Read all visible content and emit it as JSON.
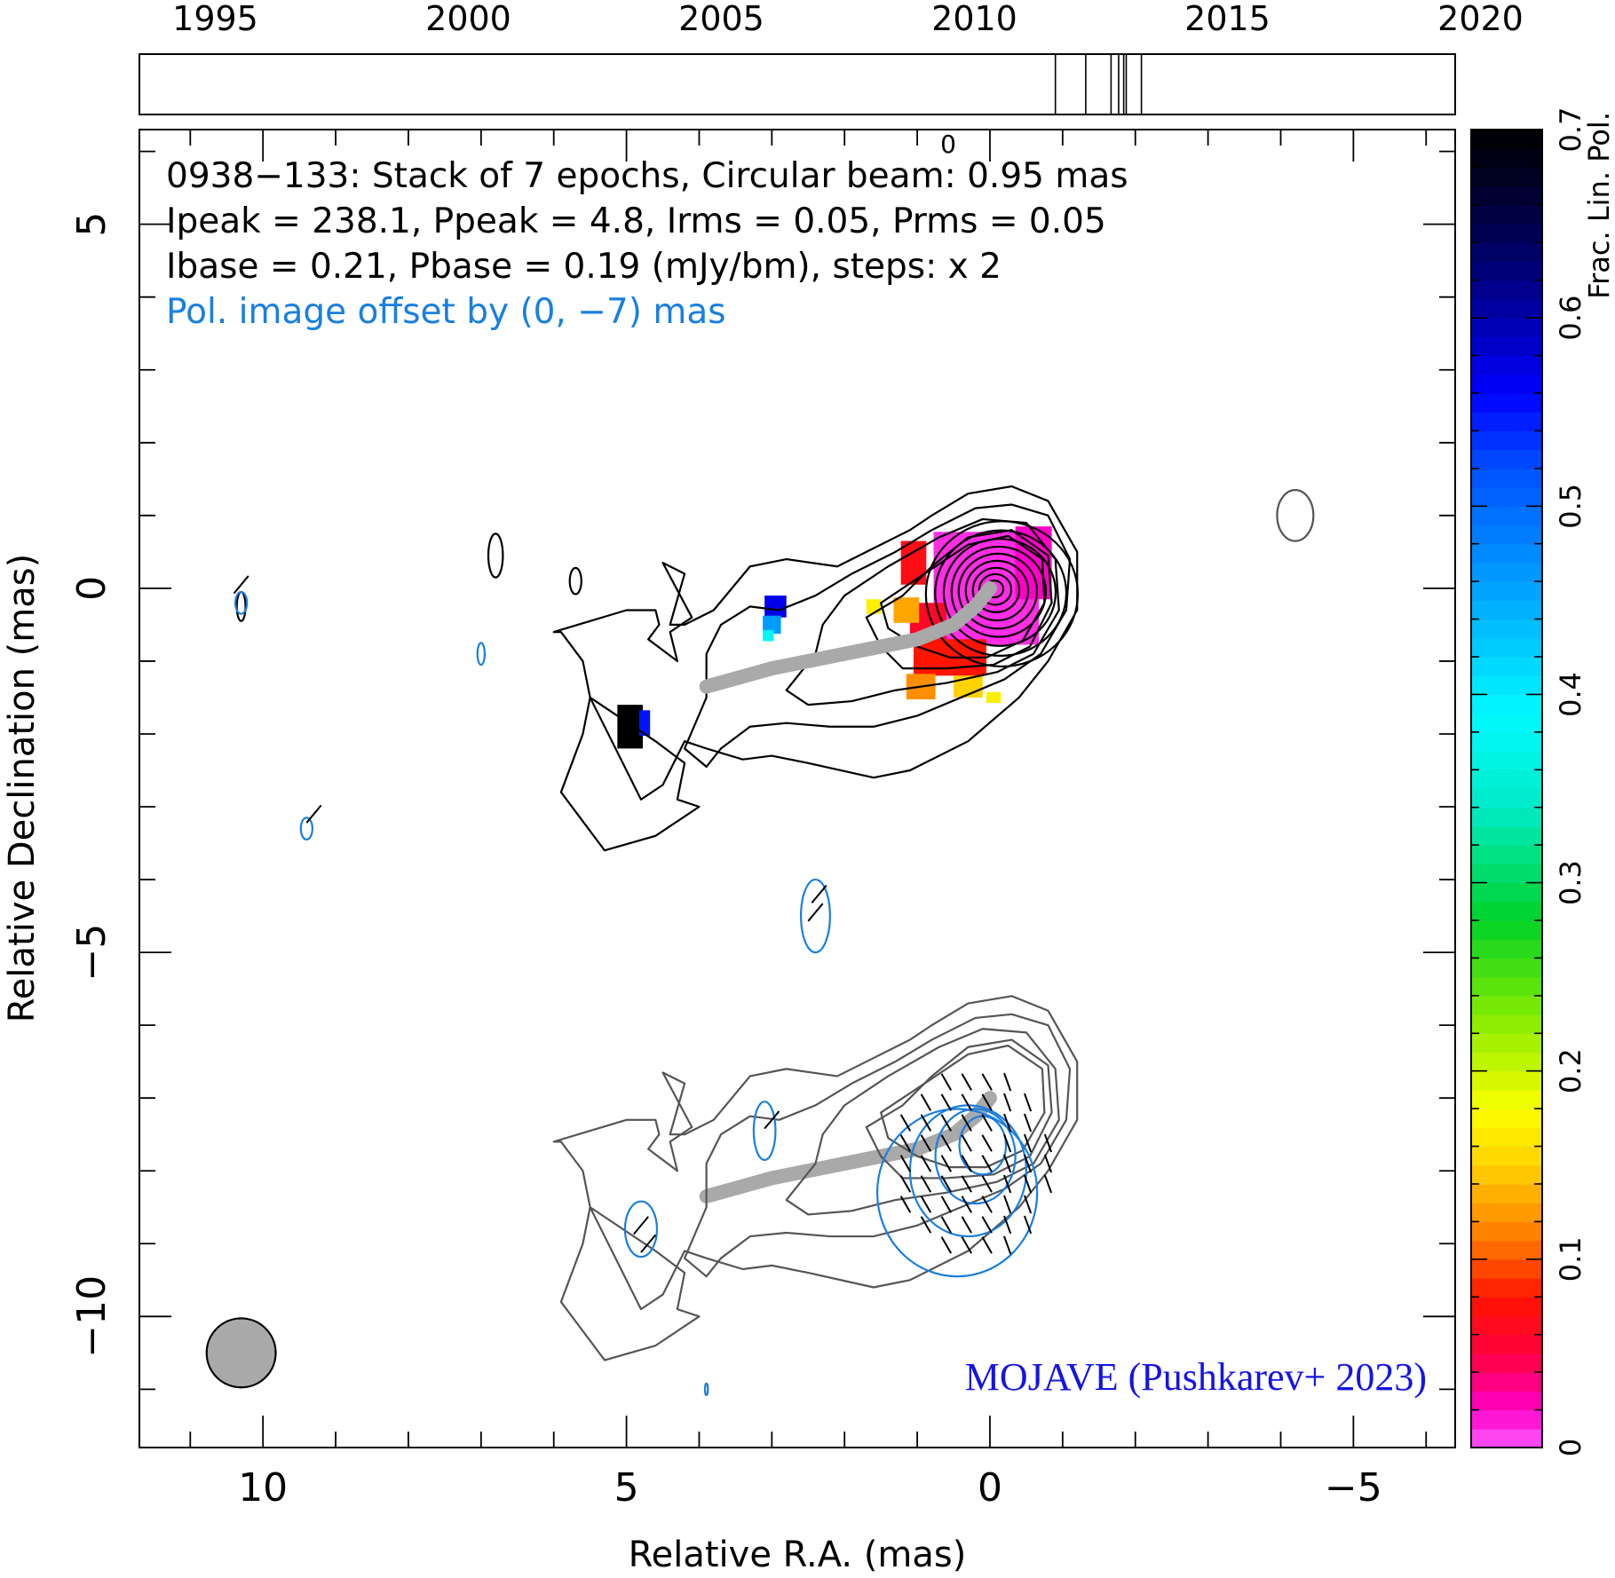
{
  "chart_data": {
    "type": "heatmap",
    "timeline": {
      "tick_labels": [
        "1995",
        "2000",
        "2005",
        "2010",
        "2015",
        "2020"
      ],
      "tick_years": [
        1995,
        2000,
        2005,
        2010,
        2015,
        2020
      ],
      "range": [
        1993.5,
        2019.5
      ],
      "epochs": [
        2011.6,
        2012.2,
        2012.7,
        2012.85,
        2012.95,
        2013.0,
        2013.3
      ]
    },
    "x_axis": {
      "label": "Relative R.A. (mas)",
      "range": [
        11.7,
        -6.4
      ],
      "tick_labels": [
        "10",
        "5",
        "0",
        "−5"
      ],
      "tick_values": [
        10,
        5,
        0,
        -5
      ],
      "minor_step": 1
    },
    "y_axis": {
      "label": "Relative Declination (mas)",
      "range": [
        -11.8,
        6.3
      ],
      "tick_labels": [
        "5",
        "0",
        "−5",
        "−10"
      ],
      "tick_values": [
        5,
        0,
        -5,
        -10
      ],
      "minor_step": 1,
      "top_extra_label": "0"
    },
    "info_lines": [
      "0938−133: Stack of 7 epochs, Circular beam: 0.95 mas",
      "Ipeak = 238.1, Ppeak = 4.8, Irms = 0.05, Prms = 0.05",
      "Ibase = 0.21, Pbase = 0.19 (mJy/bm), steps: x 2"
    ],
    "offset_note": "Pol. image offset by (0, −7) mas",
    "credit": "MOJAVE (Pushkarev+ 2023)",
    "colorbar": {
      "label": "Frac. Lin. Pol.",
      "range": [
        0,
        0.7
      ],
      "tick_labels": [
        "0",
        "0.1",
        "0.2",
        "0.3",
        "0.4",
        "0.5",
        "0.6",
        "0.7"
      ],
      "tick_values": [
        0,
        0.1,
        0.2,
        0.3,
        0.4,
        0.5,
        0.6,
        0.7
      ]
    },
    "beam": {
      "x": 10.3,
      "y": -10.5,
      "diameter": 0.95
    },
    "ridgeline": [
      [
        3.9,
        -1.35
      ],
      [
        3.0,
        -1.1
      ],
      [
        2.0,
        -0.9
      ],
      [
        1.0,
        -0.7
      ],
      [
        0.5,
        -0.5
      ],
      [
        0.2,
        -0.25
      ],
      [
        0.0,
        0.0
      ]
    ],
    "pol_offset_dec": -7,
    "stokes_I_contours": [
      {
        "level": 1,
        "points": [
          [
            5.5,
            -1.5
          ],
          [
            4.6,
            -2.1
          ],
          [
            4.2,
            -2.4
          ],
          [
            4.3,
            -2.9
          ],
          [
            4.0,
            -3.0
          ],
          [
            4.6,
            -3.4
          ],
          [
            5.3,
            -3.6
          ],
          [
            5.9,
            -2.8
          ],
          [
            5.6,
            -2.0
          ],
          [
            5.5,
            -1.5
          ],
          [
            5.6,
            -1.0
          ],
          [
            5.9,
            -0.6
          ],
          [
            6.0,
            -0.6
          ],
          [
            5.0,
            -0.3
          ],
          [
            4.6,
            -0.3
          ],
          [
            4.55,
            -0.5
          ],
          [
            4.7,
            -0.7
          ],
          [
            4.3,
            -1.0
          ],
          [
            4.4,
            -0.6
          ],
          [
            4.1,
            -0.4
          ],
          [
            4.5,
            0.35
          ],
          [
            4.2,
            0.2
          ],
          [
            4.4,
            -0.5
          ],
          [
            4.2,
            -0.5
          ],
          [
            3.8,
            -0.3
          ],
          [
            3.3,
            0.3
          ],
          [
            2.8,
            0.4
          ],
          [
            2.1,
            0.3
          ],
          [
            1.6,
            0.55
          ],
          [
            1.1,
            0.8
          ],
          [
            0.8,
            1.0
          ],
          [
            0.3,
            1.3
          ],
          [
            -0.3,
            1.4
          ],
          [
            -0.8,
            1.2
          ],
          [
            -1.2,
            0.5
          ],
          [
            -1.2,
            -0.3
          ],
          [
            -0.8,
            -1.0
          ],
          [
            -0.4,
            -1.5
          ],
          [
            0.3,
            -2.1
          ],
          [
            1.1,
            -2.5
          ],
          [
            1.6,
            -2.6
          ],
          [
            2.5,
            -2.4
          ],
          [
            3.0,
            -2.3
          ],
          [
            3.4,
            -2.35
          ],
          [
            3.9,
            -2.2
          ],
          [
            4.2,
            -2.1
          ],
          [
            4.5,
            -2.7
          ],
          [
            4.8,
            -2.9
          ],
          [
            5.5,
            -1.5
          ]
        ],
        "tone": "#000"
      },
      {
        "level": 2,
        "points": [
          [
            3.9,
            -0.9
          ],
          [
            3.7,
            -0.5
          ],
          [
            3.3,
            -0.25
          ],
          [
            2.9,
            -0.3
          ],
          [
            2.4,
            -0.1
          ],
          [
            1.9,
            0.2
          ],
          [
            1.3,
            0.5
          ],
          [
            0.8,
            0.8
          ],
          [
            0.2,
            1.1
          ],
          [
            -0.3,
            1.15
          ],
          [
            -0.8,
            1.0
          ],
          [
            -1.1,
            0.4
          ],
          [
            -1.05,
            -0.3
          ],
          [
            -0.7,
            -0.9
          ],
          [
            -0.2,
            -1.25
          ],
          [
            0.4,
            -1.5
          ],
          [
            1.0,
            -1.75
          ],
          [
            1.6,
            -1.9
          ],
          [
            2.2,
            -1.9
          ],
          [
            2.8,
            -1.85
          ],
          [
            3.3,
            -1.9
          ],
          [
            3.7,
            -2.2
          ],
          [
            3.9,
            -2.45
          ],
          [
            4.2,
            -2.2
          ],
          [
            3.9,
            -1.5
          ],
          [
            3.9,
            -0.9
          ]
        ],
        "tone": "#000"
      },
      {
        "level": 3,
        "points": [
          [
            2.8,
            -1.4
          ],
          [
            2.4,
            -0.9
          ],
          [
            2.3,
            -0.5
          ],
          [
            2.0,
            -0.1
          ],
          [
            1.4,
            0.3
          ],
          [
            0.7,
            0.7
          ],
          [
            0.1,
            0.95
          ],
          [
            -0.5,
            0.9
          ],
          [
            -0.9,
            0.4
          ],
          [
            -0.95,
            -0.3
          ],
          [
            -0.6,
            -0.9
          ],
          [
            -0.1,
            -1.15
          ],
          [
            0.6,
            -1.3
          ],
          [
            1.3,
            -1.4
          ],
          [
            1.9,
            -1.55
          ],
          [
            2.5,
            -1.6
          ],
          [
            2.8,
            -1.4
          ]
        ],
        "tone": "#000"
      },
      {
        "level": 4,
        "points": [
          [
            1.7,
            -0.4
          ],
          [
            1.2,
            -0.1
          ],
          [
            0.8,
            0.3
          ],
          [
            0.3,
            0.7
          ],
          [
            -0.3,
            0.8
          ],
          [
            -0.8,
            0.45
          ],
          [
            -0.85,
            -0.2
          ],
          [
            -0.55,
            -0.8
          ],
          [
            -0.05,
            -1.05
          ],
          [
            0.6,
            -1.1
          ],
          [
            1.2,
            -1.1
          ],
          [
            1.5,
            -0.8
          ],
          [
            1.7,
            -0.4
          ]
        ],
        "tone": "#000"
      },
      {
        "level": 5,
        "points": [
          [
            1.5,
            -0.2
          ],
          [
            0.9,
            0.2
          ],
          [
            0.3,
            0.6
          ],
          [
            -0.25,
            0.72
          ],
          [
            -0.72,
            0.4
          ],
          [
            -0.75,
            -0.2
          ],
          [
            -0.45,
            -0.72
          ],
          [
            0.05,
            -0.95
          ],
          [
            0.55,
            -0.95
          ],
          [
            1.0,
            -0.8
          ],
          [
            1.4,
            -0.55
          ],
          [
            1.5,
            -0.2
          ]
        ],
        "tone": "#000"
      }
    ],
    "stokes_I_rings": [
      0.95,
      0.82,
      0.7,
      0.59,
      0.49,
      0.39,
      0.29,
      0.2,
      0.11
    ],
    "fracpol_pixels": [
      {
        "x": 0.05,
        "y": 0.0,
        "w": 1.45,
        "h": 1.55,
        "value": 0.01
      },
      {
        "x": -0.6,
        "y": 0.35,
        "w": 0.5,
        "h": 1.0,
        "value": 0.02
      },
      {
        "x": 0.85,
        "y": -0.45,
        "w": 0.5,
        "h": 0.5,
        "value": 0.06
      },
      {
        "x": 0.55,
        "y": -0.95,
        "w": 1.0,
        "h": 0.5,
        "value": 0.08
      },
      {
        "x": 1.05,
        "y": 0.35,
        "w": 0.35,
        "h": 0.6,
        "value": 0.07
      },
      {
        "x": 1.15,
        "y": -0.3,
        "w": 0.35,
        "h": 0.35,
        "value": 0.13
      },
      {
        "x": 1.6,
        "y": -0.25,
        "w": 0.2,
        "h": 0.2,
        "value": 0.17
      },
      {
        "x": 0.95,
        "y": -1.35,
        "w": 0.4,
        "h": 0.35,
        "value": 0.12
      },
      {
        "x": 0.3,
        "y": -1.35,
        "w": 0.4,
        "h": 0.3,
        "value": 0.15
      },
      {
        "x": -0.05,
        "y": -1.5,
        "w": 0.2,
        "h": 0.15,
        "value": 0.17
      },
      {
        "x": 2.95,
        "y": -0.25,
        "w": 0.3,
        "h": 0.3,
        "value": 0.57
      },
      {
        "x": 3.0,
        "y": -0.5,
        "w": 0.25,
        "h": 0.25,
        "value": 0.46
      },
      {
        "x": 3.05,
        "y": -0.65,
        "w": 0.15,
        "h": 0.15,
        "value": 0.38
      },
      {
        "x": 4.95,
        "y": -1.9,
        "w": 0.35,
        "h": 0.6,
        "value": 0.7
      },
      {
        "x": 4.75,
        "y": -1.85,
        "w": 0.15,
        "h": 0.35,
        "value": 0.55
      }
    ],
    "pol_contours_blue": [
      {
        "cx": 0.45,
        "cy": -8.3,
        "rx": 1.1,
        "ry": 1.15
      },
      {
        "cx": 0.3,
        "cy": -8.0,
        "rx": 0.8,
        "ry": 0.9
      },
      {
        "cx": 0.2,
        "cy": -7.8,
        "rx": 0.55,
        "ry": 0.65
      },
      {
        "cx": 0.1,
        "cy": -7.65,
        "rx": 0.32,
        "ry": 0.4
      },
      {
        "cx": 2.4,
        "cy": -4.5,
        "rx": 0.2,
        "ry": 0.5
      },
      {
        "cx": 3.1,
        "cy": -7.45,
        "rx": 0.15,
        "ry": 0.4
      },
      {
        "cx": 4.8,
        "cy": -8.8,
        "rx": 0.22,
        "ry": 0.38
      },
      {
        "cx": 10.3,
        "cy": -0.2,
        "rx": 0.08,
        "ry": 0.15
      },
      {
        "cx": 7.0,
        "cy": -0.9,
        "rx": 0.05,
        "ry": 0.15
      },
      {
        "cx": 9.4,
        "cy": -3.3,
        "rx": 0.08,
        "ry": 0.15
      },
      {
        "cx": 3.9,
        "cy": -11.0,
        "rx": 0.02,
        "ry": 0.08
      }
    ]
  }
}
